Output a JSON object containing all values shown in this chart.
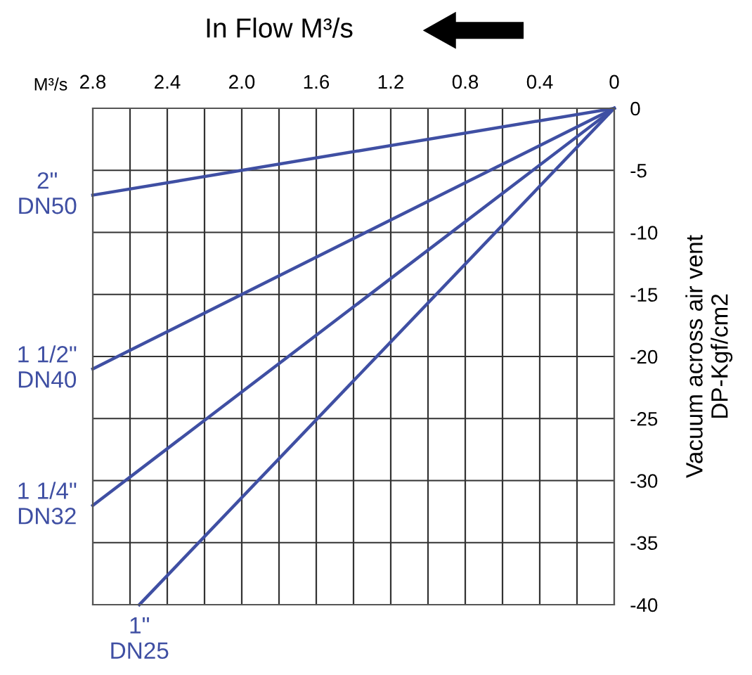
{
  "chart_data": {
    "type": "line",
    "title": "In Flow M³/s",
    "ylabel": "Vacuum across air vent\nDP-Kgf/cm2",
    "annotations": [
      "M³/s"
    ],
    "xlim": [
      2.8,
      0
    ],
    "xticks": [
      2.8,
      {
        "value": 2.6,
        "label": null
      },
      2.4,
      {
        "value": 2.2,
        "label": null
      },
      {
        "value": 2.0,
        "label": "2.0"
      },
      {
        "value": 1.8,
        "label": null
      },
      1.6,
      {
        "value": 1.4,
        "label": null
      },
      1.2,
      {
        "value": 1.0,
        "label": null
      },
      0.8,
      {
        "value": 0.6,
        "label": null
      },
      0.4,
      {
        "value": 0.2,
        "label": null
      },
      0
    ],
    "ylim": [
      -40,
      0
    ],
    "yticks": [
      0,
      -5,
      -10,
      -15,
      -20,
      -25,
      -30,
      -35,
      -40
    ],
    "grid": true,
    "marker": "none",
    "line_style": "solid",
    "series": [
      {
        "name": "2\"\nDN50",
        "color": "#3f4fa3",
        "x": [
          0,
          2.8
        ],
        "values": [
          0,
          -7
        ]
      },
      {
        "name": "1 1/2\"\nDN40",
        "color": "#3f4fa3",
        "x": [
          0,
          2.8
        ],
        "values": [
          0,
          -21
        ]
      },
      {
        "name": "1 1/4\"\nDN32",
        "color": "#3f4fa3",
        "x": [
          0,
          2.8
        ],
        "values": [
          0,
          -32
        ]
      },
      {
        "name": "1\"\nDN25",
        "color": "#3f4fa3",
        "x": [
          0,
          2.55
        ],
        "values": [
          0,
          -40
        ]
      }
    ]
  }
}
